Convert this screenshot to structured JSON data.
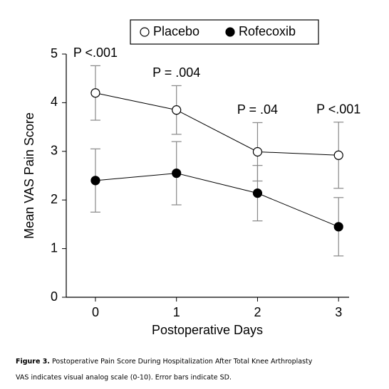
{
  "chart_data": {
    "type": "line",
    "x": [
      0,
      1,
      2,
      3
    ],
    "series": [
      {
        "name": "Placebo",
        "color": "#ffffff",
        "values": [
          4.2,
          3.85,
          2.99,
          2.92
        ],
        "errors": [
          0.56,
          0.5,
          0.6,
          0.68
        ]
      },
      {
        "name": "Rofecoxib",
        "color": "#000000",
        "values": [
          2.4,
          2.55,
          2.14,
          1.45
        ],
        "errors": [
          0.65,
          0.65,
          0.57,
          0.6
        ]
      }
    ],
    "annotations": [
      "P <.001",
      "P = .004",
      "P = .04",
      "P <.001"
    ],
    "xlabel": "Postoperative Days",
    "ylabel": "Mean VAS Pain Score",
    "xlim": [
      -0.36,
      3.13
    ],
    "xticks": [
      0,
      1,
      2,
      3
    ],
    "ylim": [
      0,
      5
    ],
    "yticks": [
      0,
      1,
      2,
      3,
      4,
      5
    ],
    "legend": "top",
    "caption_label": "Figure 3.",
    "caption": "Postoperative Pain Score During Hospitalization After Total Knee Arthroplasty",
    "note": "VAS indicates visual analog scale (0-10). Error bars indicate SD."
  }
}
